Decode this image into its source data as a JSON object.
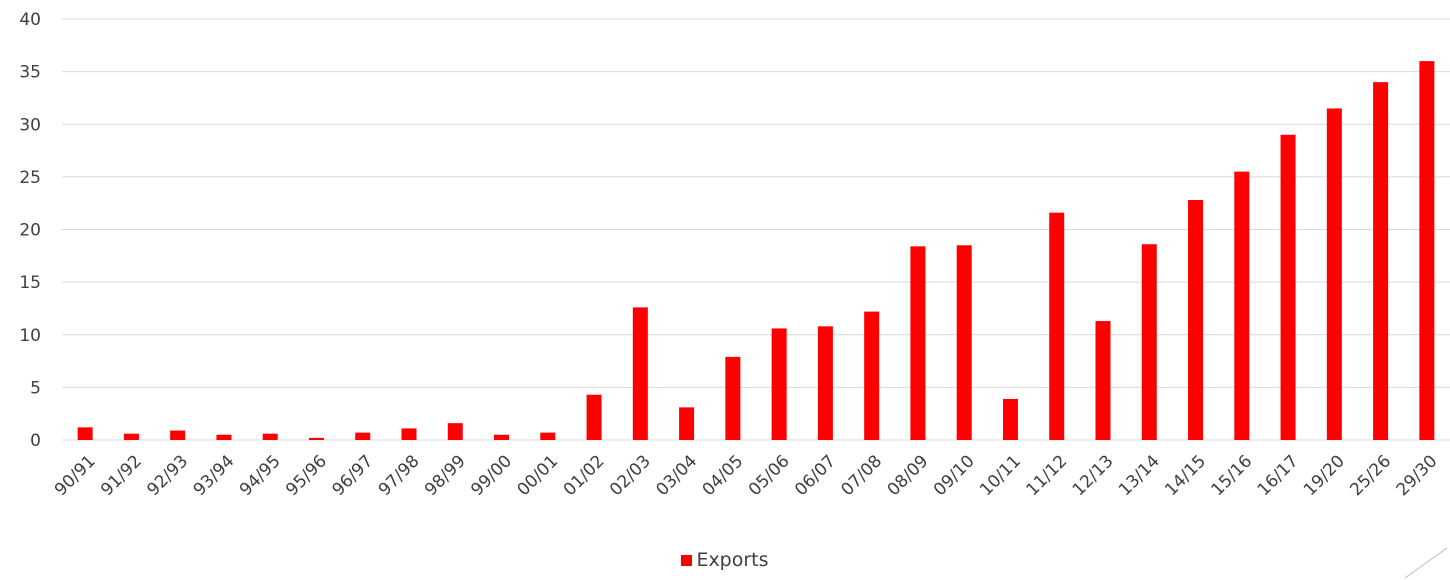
{
  "chart_data": {
    "type": "bar",
    "categories": [
      "90/91",
      "91/92",
      "92/93",
      "93/94",
      "94/95",
      "95/96",
      "96/97",
      "97/98",
      "98/99",
      "99/00",
      "00/01",
      "01/02",
      "02/03",
      "03/04",
      "04/05",
      "05/06",
      "06/07",
      "07/08",
      "08/09",
      "09/10",
      "10/11",
      "11/12",
      "12/13",
      "13/14",
      "14/15",
      "15/16",
      "16/17",
      "19/20",
      "25/26",
      "29/30"
    ],
    "series": [
      {
        "name": "Exports",
        "values": [
          1.2,
          0.6,
          0.9,
          0.5,
          0.6,
          0.2,
          0.7,
          1.1,
          1.6,
          0.5,
          0.7,
          4.3,
          12.6,
          3.1,
          7.9,
          10.6,
          10.8,
          12.2,
          18.4,
          18.5,
          3.9,
          21.6,
          11.3,
          18.6,
          22.8,
          25.5,
          29.0,
          31.5,
          34.0,
          36.0
        ],
        "color": "#ff0000"
      }
    ],
    "yticks": [
      0,
      5,
      10,
      15,
      20,
      25,
      30,
      35,
      40
    ],
    "ylim": [
      0,
      40
    ],
    "grid": true,
    "legend_position": "bottom"
  }
}
